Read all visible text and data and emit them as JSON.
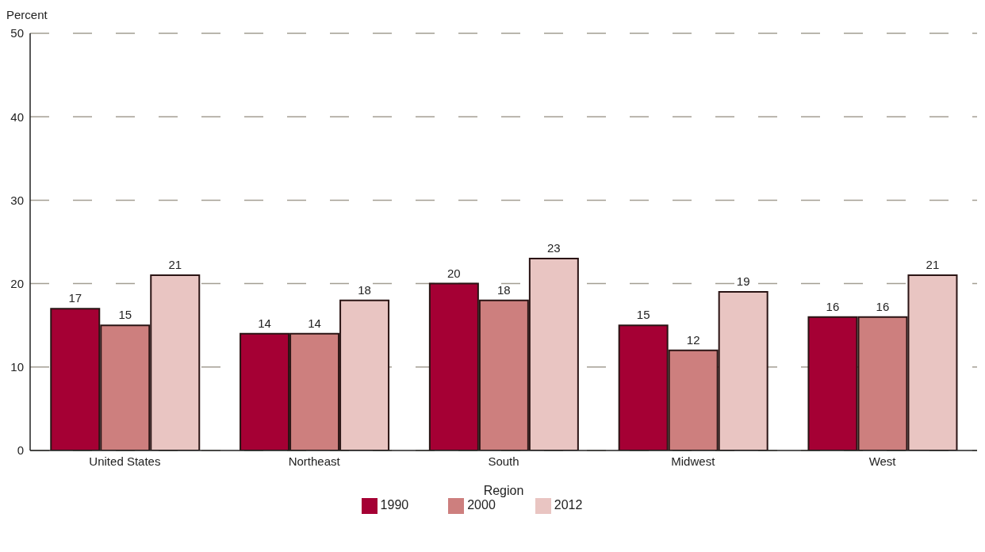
{
  "chart_data": {
    "type": "bar",
    "ylabel": "Percent",
    "xlabel": "Region",
    "categories": [
      "United States",
      "Northeast",
      "South",
      "Midwest",
      "West"
    ],
    "series": [
      {
        "name": "1990",
        "color": "#a50034",
        "values": [
          17,
          14,
          20,
          15,
          16
        ]
      },
      {
        "name": "2000",
        "color": "#cd7f7e",
        "values": [
          15,
          14,
          18,
          12,
          16
        ]
      },
      {
        "name": "2012",
        "color": "#e9c5c2",
        "values": [
          21,
          18,
          23,
          19,
          21
        ]
      }
    ],
    "ylim": [
      0,
      50
    ],
    "yticks": [
      0,
      10,
      20,
      30,
      40,
      50
    ],
    "grid": "y",
    "legend": "bottom",
    "data_labels": true
  }
}
